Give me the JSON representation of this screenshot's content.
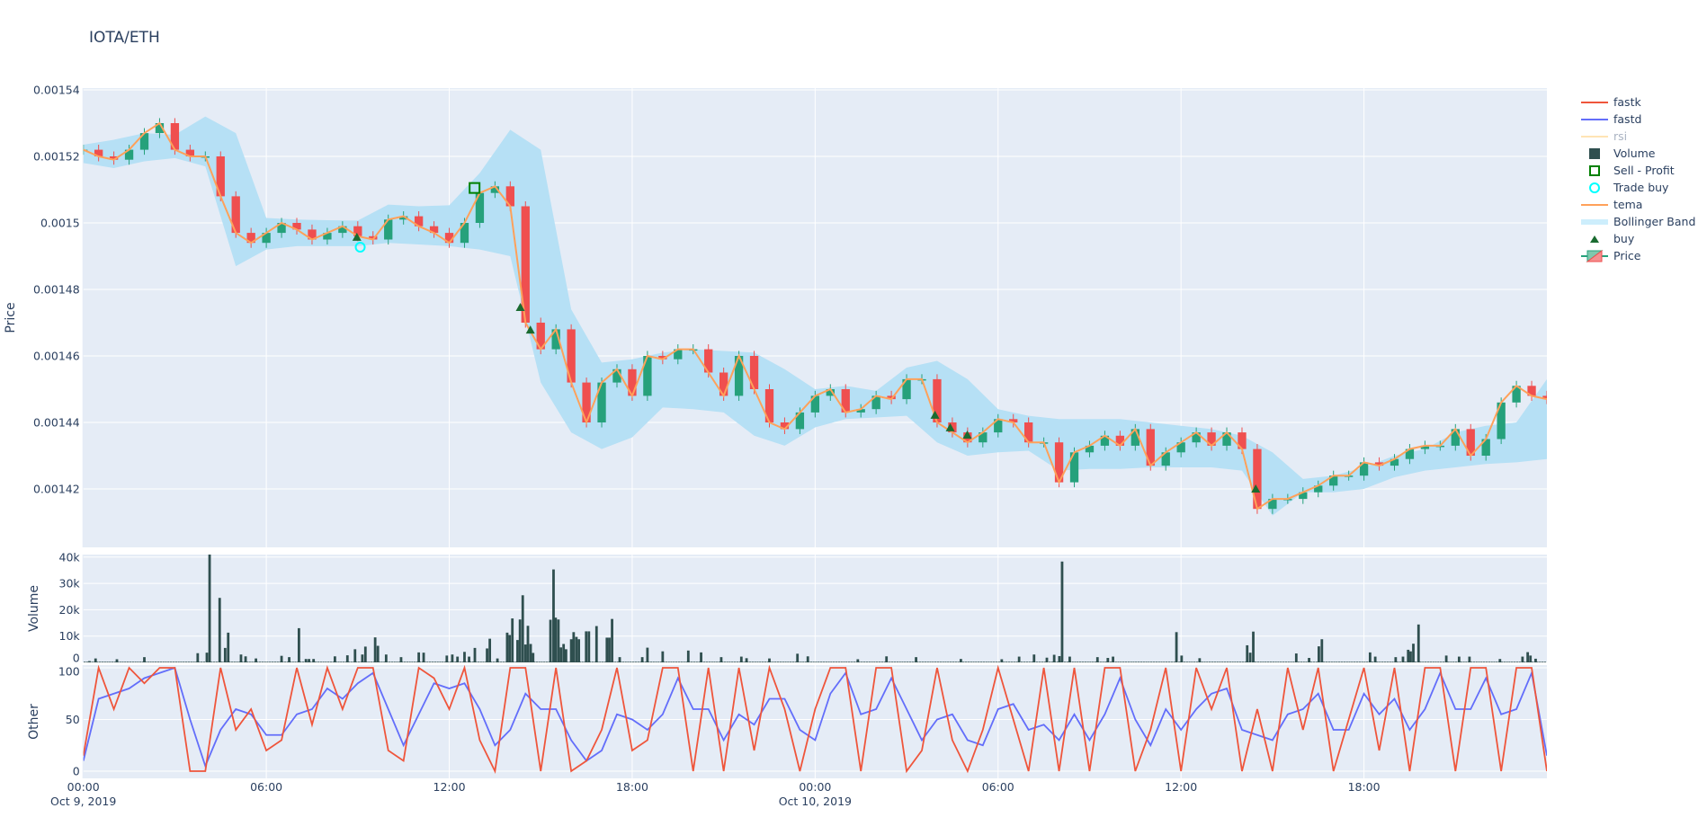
{
  "title": "IOTA/ETH",
  "colors": {
    "plot_bg": "#e5ecf6",
    "grid": "#ffffff",
    "increasing": "#26a17b",
    "decreasing": "#ef4f4f",
    "tema": "#ffa15a",
    "bollinger": "#b6e0f5",
    "volume": "#2f4f4f",
    "fastk": "#ef553b",
    "fastd": "#636efa",
    "rsi": "#ffe4b5",
    "buy": "#1a6b30",
    "sell_profit": "#008000",
    "trade_buy": "#00ffff"
  },
  "legend": [
    {
      "label": "fastk",
      "icon": "line-red"
    },
    {
      "label": "fastd",
      "icon": "line-blue"
    },
    {
      "label": "rsi",
      "icon": "line-moccasin",
      "hidden": true
    },
    {
      "label": "Volume",
      "icon": "square-filled"
    },
    {
      "label": "Sell - Profit",
      "icon": "square-open-green"
    },
    {
      "label": "Trade buy",
      "icon": "circle-open-cyan"
    },
    {
      "label": "tema",
      "icon": "line-orange"
    },
    {
      "label": "Bollinger Band",
      "icon": "band-lightblue"
    },
    {
      "label": "buy",
      "icon": "triangle-up"
    },
    {
      "label": "Price",
      "icon": "candlestick"
    }
  ],
  "chart_data": [
    {
      "type": "candlestick",
      "panel": "price",
      "ylabel": "Price",
      "ylim": [
        0.001402,
        0.001541
      ],
      "yticks": [
        "0.00142",
        "0.00144",
        "0.00146",
        "0.00148",
        "0.0015",
        "0.00152",
        "0.00154"
      ],
      "ytick_values": [
        0.00142,
        0.00144,
        0.00146,
        0.00148,
        0.0015,
        0.00152,
        0.00154
      ],
      "x_hours_from": "Oct 9, 2019 00:00",
      "x_step_hours": 0.5,
      "close": [
        0.001522,
        0.00152,
        0.001519,
        0.001522,
        0.001527,
        0.00153,
        0.001522,
        0.00152,
        0.00152,
        0.001508,
        0.001497,
        0.001494,
        0.001497,
        0.0015,
        0.001498,
        0.001495,
        0.001497,
        0.001499,
        0.001496,
        0.001495,
        0.001501,
        0.001502,
        0.001499,
        0.001497,
        0.001494,
        0.0015,
        0.001509,
        0.001511,
        0.001505,
        0.00147,
        0.001462,
        0.001468,
        0.001452,
        0.00144,
        0.001452,
        0.001456,
        0.001448,
        0.00146,
        0.001459,
        0.001462,
        0.001462,
        0.001455,
        0.001448,
        0.00146,
        0.00145,
        0.00144,
        0.001438,
        0.001443,
        0.001448,
        0.00145,
        0.001443,
        0.001444,
        0.001448,
        0.001447,
        0.001453,
        0.001453,
        0.00144,
        0.001437,
        0.001434,
        0.001437,
        0.001441,
        0.00144,
        0.001434,
        0.001434,
        0.001422,
        0.001431,
        0.001433,
        0.001436,
        0.001433,
        0.001438,
        0.001427,
        0.001431,
        0.001434,
        0.001437,
        0.001433,
        0.001437,
        0.001432,
        0.001414,
        0.001417,
        0.001417,
        0.001419,
        0.001421,
        0.001424,
        0.001424,
        0.001428,
        0.001427,
        0.001429,
        0.001432,
        0.001433,
        0.001433,
        0.001438,
        0.00143,
        0.001435,
        0.001446,
        0.001451,
        0.001448,
        0.001447
      ],
      "bollinger_step_hours": 1,
      "bollinger_upper": [
        0.0015235,
        0.001525,
        0.001527,
        0.0015265,
        0.001532,
        0.001527,
        0.0015015,
        0.001501,
        0.0015008,
        0.0015007,
        0.0015055,
        0.001505,
        0.0015053,
        0.001515,
        0.001528,
        0.001522,
        0.001474,
        0.001458,
        0.001459,
        0.001461,
        0.001462,
        0.0014615,
        0.001461,
        0.001456,
        0.00145,
        0.001451,
        0.0014495,
        0.0014565,
        0.0014585,
        0.001453,
        0.001444,
        0.001442,
        0.001441,
        0.001441,
        0.001441,
        0.00144,
        0.001439,
        0.001438,
        0.001436,
        0.001431,
        0.001423,
        0.001424,
        0.0014265,
        0.00143,
        0.001432,
        0.001437,
        0.001439,
        0.00144,
        0.001453
      ],
      "bollinger_lower": [
        0.001518,
        0.0015165,
        0.0015185,
        0.0015195,
        0.001517,
        0.001487,
        0.001492,
        0.001493,
        0.001493,
        0.001493,
        0.001494,
        0.0014935,
        0.001493,
        0.001492,
        0.00149,
        0.001452,
        0.001437,
        0.001432,
        0.0014355,
        0.0014445,
        0.001444,
        0.001443,
        0.001436,
        0.001433,
        0.0014385,
        0.001441,
        0.0014415,
        0.001442,
        0.001434,
        0.00143,
        0.001431,
        0.0014315,
        0.0014255,
        0.001426,
        0.001426,
        0.0014265,
        0.0014265,
        0.0014265,
        0.0014255,
        0.001412,
        0.001419,
        0.001419,
        0.00142,
        0.0014235,
        0.0014255,
        0.0014265,
        0.0014275,
        0.001428,
        0.001429
      ],
      "buy": [
        [
          8.97,
          0.0014957
        ],
        [
          14.33,
          0.0014746
        ],
        [
          14.66,
          0.0014678
        ],
        [
          27.93,
          0.0014422
        ],
        [
          28.43,
          0.0014384
        ],
        [
          28.99,
          0.0014362
        ],
        [
          38.45,
          0.00142
        ]
      ],
      "trade_buy": [
        [
          9.08,
          0.0014927
        ]
      ],
      "sell_profit": [
        [
          12.83,
          0.0015105
        ]
      ]
    },
    {
      "type": "bar",
      "panel": "volume",
      "ylabel": "Volume",
      "ylim": [
        0,
        42000
      ],
      "yticks": [
        "0",
        "10k",
        "20k",
        "30k",
        "40k"
      ],
      "ytick_values": [
        0,
        10000,
        20000,
        30000,
        40000
      ],
      "bars_hour_value": [
        [
          0.2,
          500
        ],
        [
          0.4,
          1500
        ],
        [
          1.1,
          1200
        ],
        [
          2.0,
          2000
        ],
        [
          3.75,
          3500
        ],
        [
          4.05,
          3700
        ],
        [
          4.14,
          41000
        ],
        [
          4.47,
          24500
        ],
        [
          4.65,
          5500
        ],
        [
          4.75,
          11300
        ],
        [
          5.17,
          3000
        ],
        [
          5.32,
          2300
        ],
        [
          5.66,
          1500
        ],
        [
          6.5,
          2500
        ],
        [
          6.75,
          2000
        ],
        [
          7.07,
          13000
        ],
        [
          7.3,
          1300
        ],
        [
          7.4,
          1300
        ],
        [
          7.55,
          1300
        ],
        [
          8.25,
          2300
        ],
        [
          8.66,
          2700
        ],
        [
          8.91,
          5000
        ],
        [
          9.15,
          3000
        ],
        [
          9.25,
          6000
        ],
        [
          9.57,
          9500
        ],
        [
          9.66,
          6300
        ],
        [
          9.93,
          3000
        ],
        [
          10.42,
          2000
        ],
        [
          11.0,
          3800
        ],
        [
          11.16,
          3700
        ],
        [
          11.92,
          2600
        ],
        [
          12.1,
          3000
        ],
        [
          12.27,
          2200
        ],
        [
          12.5,
          4000
        ],
        [
          12.65,
          2200
        ],
        [
          12.84,
          5500
        ],
        [
          13.24,
          5300
        ],
        [
          13.33,
          9000
        ],
        [
          13.58,
          1500
        ],
        [
          13.9,
          11300
        ],
        [
          13.98,
          10400
        ],
        [
          14.07,
          16700
        ],
        [
          14.24,
          8500
        ],
        [
          14.32,
          16300
        ],
        [
          14.41,
          25500
        ],
        [
          14.5,
          6800
        ],
        [
          14.58,
          13900
        ],
        [
          14.67,
          7000
        ],
        [
          14.75,
          3600
        ],
        [
          15.32,
          16200
        ],
        [
          15.42,
          35300
        ],
        [
          15.49,
          17000
        ],
        [
          15.58,
          16300
        ],
        [
          15.66,
          5700
        ],
        [
          15.75,
          7000
        ],
        [
          15.83,
          5000
        ],
        [
          16.0,
          8800
        ],
        [
          16.08,
          11500
        ],
        [
          16.17,
          9700
        ],
        [
          16.25,
          8800
        ],
        [
          16.49,
          11800
        ],
        [
          16.58,
          11800
        ],
        [
          16.83,
          13800
        ],
        [
          17.17,
          9400
        ],
        [
          17.25,
          9400
        ],
        [
          17.34,
          16500
        ],
        [
          17.59,
          2000
        ],
        [
          18.33,
          2000
        ],
        [
          18.5,
          5600
        ],
        [
          19.0,
          4200
        ],
        [
          19.84,
          4500
        ],
        [
          20.26,
          3800
        ],
        [
          20.92,
          2000
        ],
        [
          21.58,
          2200
        ],
        [
          21.75,
          1600
        ],
        [
          22.5,
          1500
        ],
        [
          23.42,
          3300
        ],
        [
          23.76,
          2300
        ],
        [
          25.4,
          1200
        ],
        [
          26.34,
          2300
        ],
        [
          27.31,
          2000
        ],
        [
          28.78,
          1300
        ],
        [
          30.12,
          1200
        ],
        [
          30.69,
          2200
        ],
        [
          31.18,
          3000
        ],
        [
          31.6,
          1800
        ],
        [
          31.84,
          2900
        ],
        [
          32.01,
          2400
        ],
        [
          32.1,
          38300
        ],
        [
          32.35,
          2200
        ],
        [
          33.26,
          2000
        ],
        [
          33.6,
          1700
        ],
        [
          33.77,
          2200
        ],
        [
          35.85,
          11500
        ],
        [
          36.02,
          2600
        ],
        [
          36.61,
          1600
        ],
        [
          38.17,
          6500
        ],
        [
          38.27,
          3700
        ],
        [
          38.37,
          11700
        ],
        [
          39.78,
          3400
        ],
        [
          40.2,
          1700
        ],
        [
          40.52,
          6100
        ],
        [
          40.62,
          8800
        ],
        [
          42.2,
          3800
        ],
        [
          42.37,
          2200
        ],
        [
          43.04,
          2000
        ],
        [
          43.28,
          2200
        ],
        [
          43.45,
          4800
        ],
        [
          43.53,
          4200
        ],
        [
          43.62,
          7100
        ],
        [
          43.79,
          14400
        ],
        [
          44.7,
          2600
        ],
        [
          45.12,
          2200
        ],
        [
          45.46,
          2200
        ],
        [
          46.46,
          1300
        ],
        [
          47.2,
          2200
        ],
        [
          47.37,
          3900
        ],
        [
          47.46,
          2600
        ],
        [
          47.63,
          1400
        ]
      ]
    },
    {
      "type": "line",
      "panel": "other",
      "ylabel": "Other",
      "ylim": [
        -3,
        103
      ],
      "yticks": [
        "0",
        "50",
        "100"
      ],
      "ytick_values": [
        0,
        50,
        100
      ],
      "x_step_hours": 0.5,
      "series": [
        {
          "name": "fastk",
          "values": [
            15,
            100,
            60,
            100,
            85,
            100,
            100,
            0,
            0,
            100,
            40,
            60,
            20,
            30,
            100,
            45,
            100,
            60,
            100,
            100,
            20,
            10,
            100,
            90,
            60,
            100,
            30,
            0,
            100,
            100,
            0,
            100,
            0,
            10,
            40,
            100,
            20,
            30,
            100,
            100,
            0,
            100,
            0,
            100,
            20,
            100,
            60,
            0,
            60,
            100,
            100,
            0,
            100,
            100,
            0,
            20,
            100,
            30,
            0,
            40,
            100,
            50,
            0,
            100,
            0,
            100,
            0,
            100,
            100,
            0,
            40,
            100,
            0,
            100,
            60,
            100,
            0,
            60,
            0,
            100,
            40,
            100,
            0,
            50,
            100,
            20,
            100,
            0,
            100,
            100,
            0,
            100,
            100,
            0,
            100,
            100,
            0
          ]
        },
        {
          "name": "fastd",
          "values": [
            10,
            70,
            75,
            80,
            90,
            95,
            100,
            50,
            5,
            40,
            60,
            55,
            35,
            35,
            55,
            60,
            80,
            70,
            85,
            95,
            60,
            25,
            55,
            85,
            80,
            85,
            60,
            25,
            40,
            75,
            60,
            60,
            30,
            10,
            20,
            55,
            50,
            40,
            55,
            90,
            60,
            60,
            30,
            55,
            45,
            70,
            70,
            40,
            30,
            75,
            95,
            55,
            60,
            90,
            60,
            30,
            50,
            55,
            30,
            25,
            60,
            65,
            40,
            45,
            30,
            55,
            30,
            55,
            90,
            50,
            25,
            60,
            40,
            60,
            75,
            80,
            40,
            35,
            30,
            55,
            60,
            75,
            40,
            40,
            75,
            55,
            70,
            40,
            60,
            95,
            60,
            60,
            90,
            55,
            60,
            95,
            15
          ]
        },
        {
          "name": "rsi",
          "values": []
        }
      ]
    }
  ],
  "xaxis": {
    "ticks": [
      {
        "time": "00:00",
        "date": "Oct 9, 2019",
        "hour": 0
      },
      {
        "time": "06:00",
        "date": "",
        "hour": 6
      },
      {
        "time": "12:00",
        "date": "",
        "hour": 12
      },
      {
        "time": "18:00",
        "date": "",
        "hour": 18
      },
      {
        "time": "00:00",
        "date": "Oct 10, 2019",
        "hour": 24
      },
      {
        "time": "06:00",
        "date": "",
        "hour": 30
      },
      {
        "time": "12:00",
        "date": "",
        "hour": 36
      },
      {
        "time": "18:00",
        "date": "",
        "hour": 42
      }
    ],
    "range_hours": [
      0,
      48
    ]
  }
}
